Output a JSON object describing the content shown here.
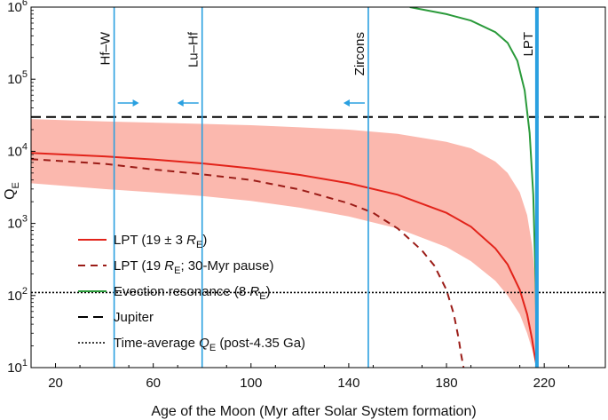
{
  "chart_data": {
    "type": "line",
    "xlabel": "Age of the Moon (Myr after Solar System formation)",
    "ylabel": "Q",
    "ylabel_sub": "E",
    "xlim": [
      10,
      245
    ],
    "ylim": [
      10,
      1000000
    ],
    "yscale": "log",
    "xticks": [
      20,
      60,
      100,
      140,
      180,
      220
    ],
    "yticks": [
      {
        "value": 10,
        "base": "10",
        "exp": "1"
      },
      {
        "value": 100,
        "base": "10",
        "exp": "2"
      },
      {
        "value": 1000,
        "base": "10",
        "exp": "3"
      },
      {
        "value": 10000,
        "base": "10",
        "exp": "4"
      },
      {
        "value": 100000,
        "base": "10",
        "exp": "5"
      },
      {
        "value": 1000000,
        "base": "10",
        "exp": "6"
      }
    ],
    "grid": false,
    "legend_position": "bottom-left",
    "vertical_lines": [
      {
        "label": "Hf–W",
        "x": 44,
        "arrow": "right"
      },
      {
        "label": "Lu–Hf",
        "x": 80,
        "arrow": "left"
      },
      {
        "label": "Zircons",
        "x": 148,
        "arrow": "left"
      },
      {
        "label": "LPT",
        "x": 217,
        "arrow": "none",
        "thick": true
      }
    ],
    "band": {
      "x": [
        10,
        40,
        60,
        80,
        100,
        120,
        140,
        160,
        180,
        190,
        200,
        205,
        210,
        213,
        215,
        216.5,
        217
      ],
      "lower": [
        3600,
        3000,
        2700,
        2400,
        2050,
        1650,
        1250,
        850,
        470,
        300,
        160,
        100,
        55,
        30,
        18,
        12,
        10
      ],
      "upper": [
        28000,
        26000,
        25000,
        24000,
        23000,
        21500,
        20000,
        17500,
        13500,
        11000,
        7200,
        5000,
        2700,
        1300,
        500,
        150,
        15
      ]
    },
    "series": [
      {
        "name": "LPT (19 ± 3 R",
        "name_sub": "E",
        "name_tail": ")",
        "style": "solid",
        "color": "#e2231a",
        "x": [
          10,
          40,
          60,
          80,
          100,
          120,
          140,
          160,
          180,
          190,
          200,
          205,
          210,
          213,
          215,
          216,
          217
        ],
        "y": [
          9500,
          8500,
          7700,
          6800,
          5800,
          4700,
          3600,
          2500,
          1400,
          900,
          450,
          270,
          120,
          55,
          25,
          15,
          10
        ]
      },
      {
        "name": "LPT (19 R",
        "name_sub": "E",
        "name_tail": "; 30-Myr pause)",
        "style": "dashed",
        "color": "#9b1c17",
        "x": [
          10,
          40,
          60,
          80,
          100,
          120,
          140,
          150,
          160,
          170,
          175,
          180,
          183,
          185,
          186,
          187
        ],
        "y": [
          7800,
          6700,
          5600,
          4800,
          4000,
          2950,
          1900,
          1400,
          850,
          420,
          260,
          120,
          55,
          25,
          15,
          10
        ]
      },
      {
        "name": "Evection resonance (8 R",
        "name_sub": "E",
        "name_tail": ")",
        "style": "solid",
        "color": "#2a9a3a",
        "x": [
          165,
          180,
          190,
          200,
          205,
          209,
          212,
          214,
          215.5,
          216.5,
          217
        ],
        "y": [
          1000000,
          800000,
          650000,
          450000,
          320000,
          180000,
          70000,
          18000,
          2500,
          150,
          10
        ]
      },
      {
        "name": "Jupiter",
        "style": "dashed-long",
        "color": "#000000",
        "x": [
          10,
          245
        ],
        "y": [
          30000,
          30000
        ]
      },
      {
        "name": "Time-average Q",
        "name_sub": "E",
        "name_tail": " (post-4.35 Ga)",
        "style": "dotted",
        "color": "#000000",
        "x": [
          10,
          245
        ],
        "y": [
          110,
          110
        ]
      }
    ],
    "colors": {
      "band": "#fbb8ae",
      "vline": "#2aa0e0"
    }
  }
}
